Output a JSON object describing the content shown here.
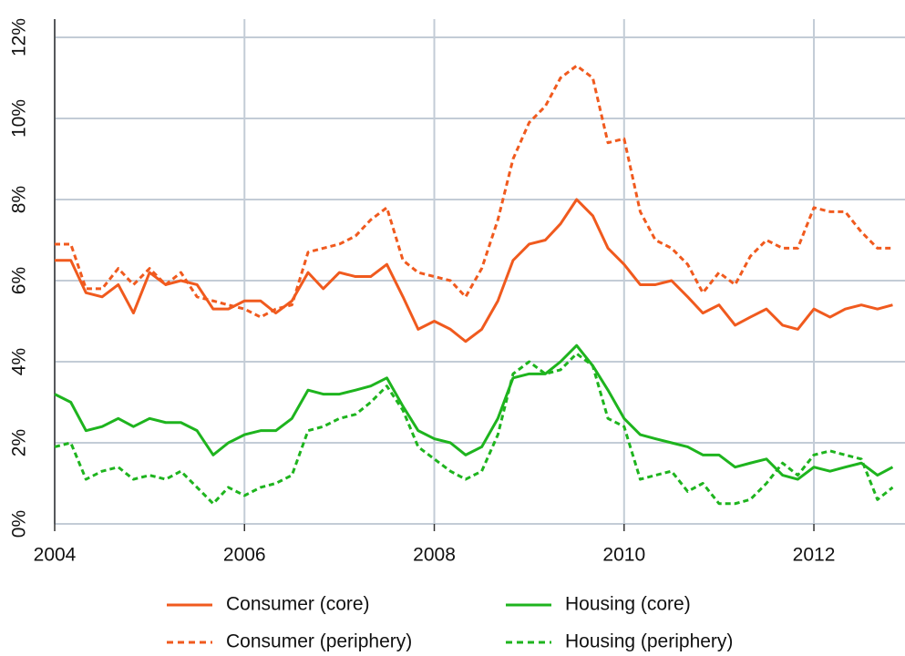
{
  "chart_data": {
    "type": "line",
    "x": [
      2004,
      2004.17,
      2004.33,
      2004.5,
      2004.67,
      2004.83,
      2005,
      2005.17,
      2005.33,
      2005.5,
      2005.67,
      2005.83,
      2006,
      2006.17,
      2006.33,
      2006.5,
      2006.67,
      2006.83,
      2007,
      2007.17,
      2007.33,
      2007.5,
      2007.67,
      2007.83,
      2008,
      2008.17,
      2008.33,
      2008.5,
      2008.67,
      2008.83,
      2009,
      2009.17,
      2009.33,
      2009.5,
      2009.67,
      2009.83,
      2010,
      2010.17,
      2010.33,
      2010.5,
      2010.67,
      2010.83,
      2011,
      2011.17,
      2011.33,
      2011.5,
      2011.67,
      2011.83,
      2012,
      2012.17,
      2012.33,
      2012.5,
      2012.67,
      2012.83
    ],
    "series": [
      {
        "name": "Consumer (core)",
        "color": "#f05a1e",
        "linestyle": "solid",
        "values": [
          6.5,
          6.5,
          5.7,
          5.6,
          5.9,
          5.2,
          6.2,
          5.9,
          6.0,
          5.9,
          5.3,
          5.3,
          5.5,
          5.5,
          5.2,
          5.5,
          6.2,
          5.8,
          6.2,
          6.1,
          6.1,
          6.4,
          5.6,
          4.8,
          5.0,
          4.8,
          4.5,
          4.8,
          5.5,
          6.5,
          6.9,
          7.0,
          7.4,
          8.0,
          7.6,
          6.8,
          6.4,
          5.9,
          5.9,
          6.0,
          5.6,
          5.2,
          5.4,
          4.9,
          5.1,
          5.3,
          4.9,
          4.8,
          5.3,
          5.1,
          5.3,
          5.4,
          5.3,
          5.4
        ]
      },
      {
        "name": "Housing (core)",
        "color": "#1eb41e",
        "linestyle": "solid",
        "values": [
          3.2,
          3.0,
          2.3,
          2.4,
          2.6,
          2.4,
          2.6,
          2.5,
          2.5,
          2.3,
          1.7,
          2.0,
          2.2,
          2.3,
          2.3,
          2.6,
          3.3,
          3.2,
          3.2,
          3.3,
          3.4,
          3.6,
          2.9,
          2.3,
          2.1,
          2.0,
          1.7,
          1.9,
          2.6,
          3.6,
          3.7,
          3.7,
          4.0,
          4.4,
          3.9,
          3.3,
          2.6,
          2.2,
          2.1,
          2.0,
          1.9,
          1.7,
          1.7,
          1.4,
          1.5,
          1.6,
          1.2,
          1.1,
          1.4,
          1.3,
          1.4,
          1.5,
          1.2,
          1.4
        ]
      },
      {
        "name": "Consumer (periphery)",
        "color": "#f05a1e",
        "linestyle": "dashed",
        "values": [
          6.9,
          6.9,
          5.8,
          5.8,
          6.3,
          5.9,
          6.3,
          5.9,
          6.2,
          5.6,
          5.5,
          5.4,
          5.3,
          5.1,
          5.3,
          5.4,
          6.7,
          6.8,
          6.9,
          7.1,
          7.5,
          7.8,
          6.5,
          6.2,
          6.1,
          6.0,
          5.6,
          6.3,
          7.5,
          9.0,
          9.9,
          10.3,
          11.0,
          11.3,
          11.0,
          9.4,
          9.5,
          7.7,
          7.0,
          6.8,
          6.4,
          5.7,
          6.2,
          5.9,
          6.6,
          7.0,
          6.8,
          6.8,
          7.8,
          7.7,
          7.7,
          7.2,
          6.8,
          6.8
        ]
      },
      {
        "name": "Housing (periphery)",
        "color": "#1eb41e",
        "linestyle": "dashed",
        "values": [
          1.9,
          2.0,
          1.1,
          1.3,
          1.4,
          1.1,
          1.2,
          1.1,
          1.3,
          0.9,
          0.5,
          0.9,
          0.7,
          0.9,
          1.0,
          1.2,
          2.3,
          2.4,
          2.6,
          2.7,
          3.0,
          3.4,
          2.8,
          1.9,
          1.6,
          1.3,
          1.1,
          1.3,
          2.2,
          3.7,
          4.0,
          3.7,
          3.8,
          4.2,
          3.9,
          2.6,
          2.4,
          1.1,
          1.2,
          1.3,
          0.8,
          1.0,
          0.5,
          0.5,
          0.6,
          1.0,
          1.5,
          1.2,
          1.7,
          1.8,
          1.7,
          1.6,
          0.6,
          0.9
        ]
      }
    ],
    "xlim": [
      2004,
      2012.96
    ],
    "xticks": [
      2004,
      2006,
      2008,
      2010,
      2012
    ],
    "ylim": [
      0,
      12
    ],
    "yticks": [
      {
        "value": 0,
        "label": "0%"
      },
      {
        "value": 2,
        "label": "2%"
      },
      {
        "value": 4,
        "label": "4%"
      },
      {
        "value": 6,
        "label": "6%"
      },
      {
        "value": 8,
        "label": "8%"
      },
      {
        "value": 10,
        "label": "10%"
      },
      {
        "value": 12,
        "label": "12%"
      }
    ],
    "grid": true,
    "legend": "bottom"
  }
}
